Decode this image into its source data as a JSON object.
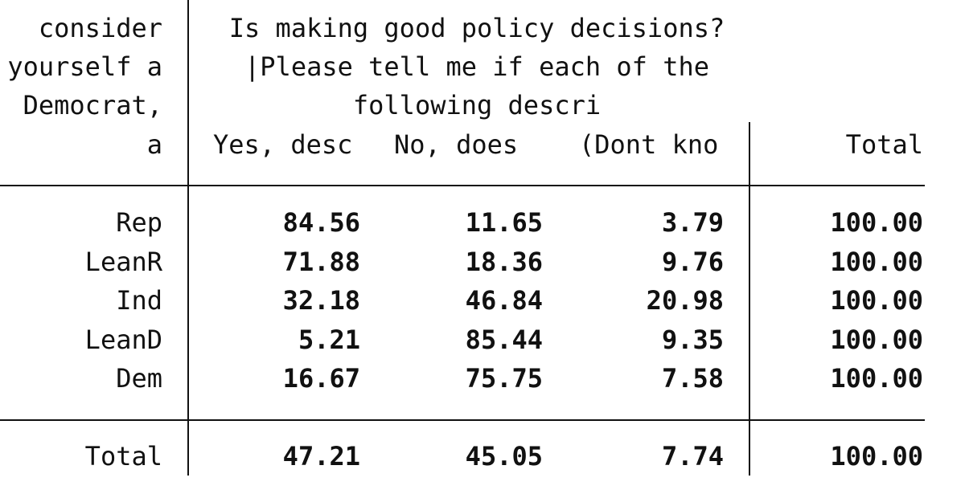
{
  "table": {
    "stub_header": [
      "consider",
      "yourself a",
      "Democrat,",
      "a"
    ],
    "header_title": [
      "Is making good policy decisions?",
      "|Please tell me if each of the",
      "following descri"
    ],
    "columns": [
      "Yes, desc",
      "No, does",
      "(Dont kno",
      "Total"
    ],
    "rows": [
      {
        "label": "Rep",
        "values": [
          "84.56",
          "11.65",
          "3.79",
          "100.00"
        ]
      },
      {
        "label": "LeanR",
        "values": [
          "71.88",
          "18.36",
          "9.76",
          "100.00"
        ]
      },
      {
        "label": "Ind",
        "values": [
          "32.18",
          "46.84",
          "20.98",
          "100.00"
        ]
      },
      {
        "label": "LeanD",
        "values": [
          "5.21",
          "85.44",
          "9.35",
          "100.00"
        ]
      },
      {
        "label": "Dem",
        "values": [
          "16.67",
          "75.75",
          "7.58",
          "100.00"
        ]
      }
    ],
    "total": {
      "label": "Total",
      "values": [
        "47.21",
        "45.05",
        "7.74",
        "100.00"
      ]
    }
  }
}
